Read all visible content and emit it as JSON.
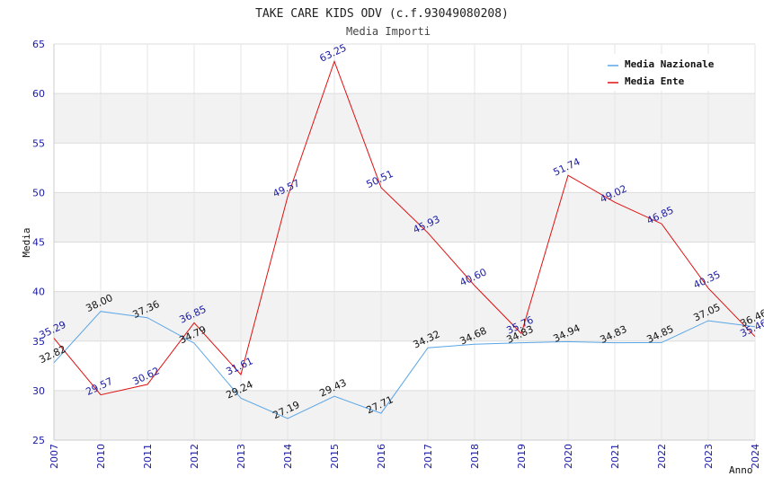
{
  "chart_data": {
    "type": "line",
    "title": "TAKE CARE KIDS ODV (c.f.93049080208)",
    "subtitle": "Media Importi",
    "xlabel": "Anno",
    "ylabel": "Media",
    "ylim": [
      25,
      65
    ],
    "yticks": [
      25,
      30,
      35,
      40,
      45,
      50,
      55,
      60,
      65
    ],
    "grid": true,
    "legend_position": "top-right",
    "x": [
      "2007",
      "2010",
      "2011",
      "2012",
      "2013",
      "2014",
      "2015",
      "2016",
      "2017",
      "2018",
      "2019",
      "2020",
      "2021",
      "2022",
      "2023",
      "2024"
    ],
    "series": [
      {
        "name": "Media Nazionale",
        "color": "#5aa5e6",
        "values": [
          32.82,
          38.0,
          37.36,
          34.79,
          29.24,
          27.19,
          29.43,
          27.71,
          34.32,
          34.68,
          34.83,
          34.94,
          34.83,
          34.85,
          37.05,
          36.46
        ],
        "labels": [
          "32.82",
          "38.00",
          "37.36",
          "34.79",
          "29.24",
          "27.19",
          "29.43",
          "27.71",
          "34.32",
          "34.68",
          "34.83",
          "34.94",
          "34.83",
          "34.85",
          "37.05",
          "36.46"
        ]
      },
      {
        "name": "Media Ente",
        "color": "#e01010",
        "values": [
          35.29,
          29.57,
          30.62,
          36.85,
          31.61,
          49.57,
          63.25,
          50.51,
          45.93,
          40.6,
          35.76,
          51.74,
          49.02,
          46.85,
          40.35,
          35.46
        ],
        "labels": [
          "35.29",
          "29.57",
          "30.62",
          "36.85",
          "31.61",
          "49.57",
          "63.25",
          "50.51",
          "45.93",
          "40.60",
          "35.76",
          "51.74",
          "49.02",
          "46.85",
          "40.35",
          "35.46"
        ]
      }
    ]
  }
}
